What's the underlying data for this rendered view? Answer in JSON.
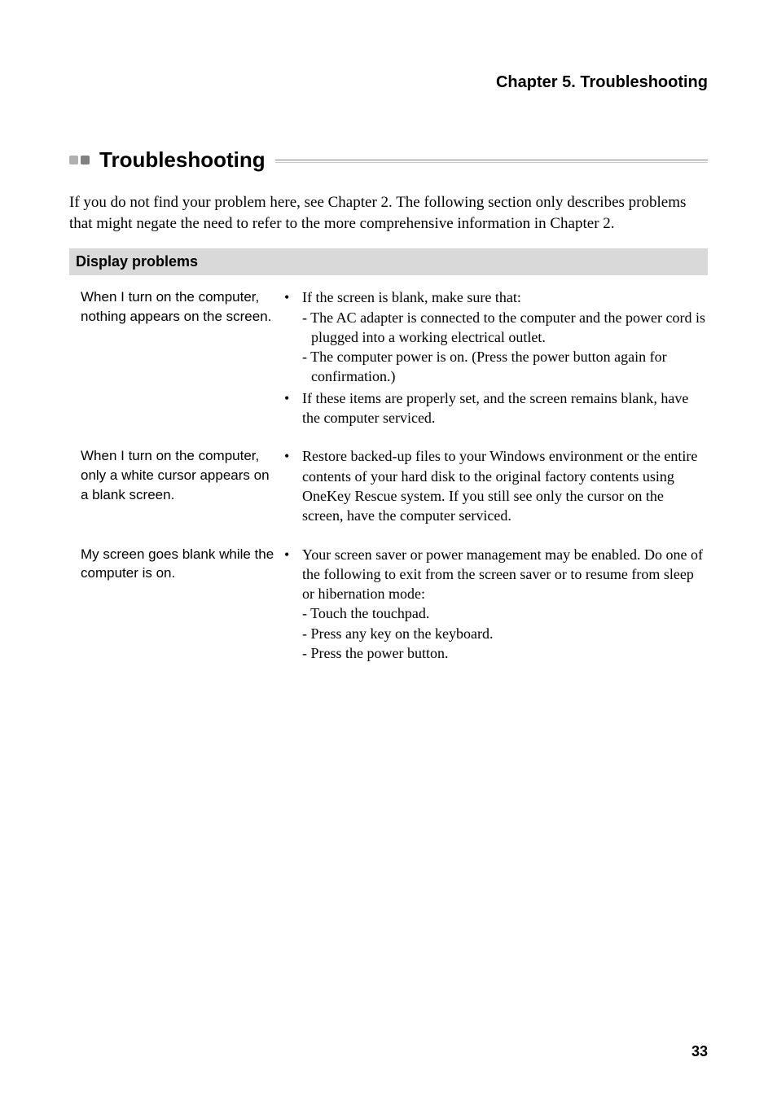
{
  "chapter_header": "Chapter 5. Troubleshooting",
  "section_title": "Troubleshooting",
  "intro": "If you do not find your problem here, see Chapter 2. The following section only describes problems that might negate the need to refer to the more comprehensive information in Chapter 2.",
  "category": "Display problems",
  "rows": [
    {
      "problem": "When I turn on the computer, nothing appears on the screen.",
      "solutions": [
        {
          "main": "If the screen is blank, make sure that:",
          "subs": [
            "- The AC adapter is connected to the computer and the power cord is plugged into a working electrical outlet.",
            "- The computer power is on. (Press the power button again for confirmation.)"
          ]
        },
        {
          "main": "If these items are properly set, and the screen remains blank, have the computer serviced.",
          "subs": []
        }
      ]
    },
    {
      "problem": "When I turn on the computer, only a white cursor appears on a blank screen.",
      "solutions": [
        {
          "main": "Restore backed-up files to your Windows environment or the entire contents of your hard disk to the original factory contents using OneKey Rescue system. If you still see only the cursor on the screen, have the computer serviced.",
          "subs": []
        }
      ]
    },
    {
      "problem": "My screen goes blank while the computer is on.",
      "solutions": [
        {
          "main": "Your screen saver or power management may be enabled. Do one of the following to exit from the screen saver or to resume from sleep or hibernation mode:",
          "subs": [
            "- Touch the touchpad.",
            "- Press any key on the keyboard.",
            "- Press the power button."
          ]
        }
      ]
    }
  ],
  "page_number": "33",
  "colors": {
    "background": "#ffffff",
    "text": "#000000",
    "category_bg": "#d9d9d9",
    "bullet_gray": "#b0b0b0",
    "bullet_dark": "#808080",
    "line_color": "#808080"
  },
  "fonts": {
    "serif": "Georgia, Times New Roman, serif",
    "sans": "Arial, Helvetica, sans-serif",
    "chapter_header_size": 20,
    "section_title_size": 26,
    "intro_size": 19,
    "category_size": 18,
    "problem_size": 17,
    "solution_size": 18,
    "page_number_size": 18
  }
}
